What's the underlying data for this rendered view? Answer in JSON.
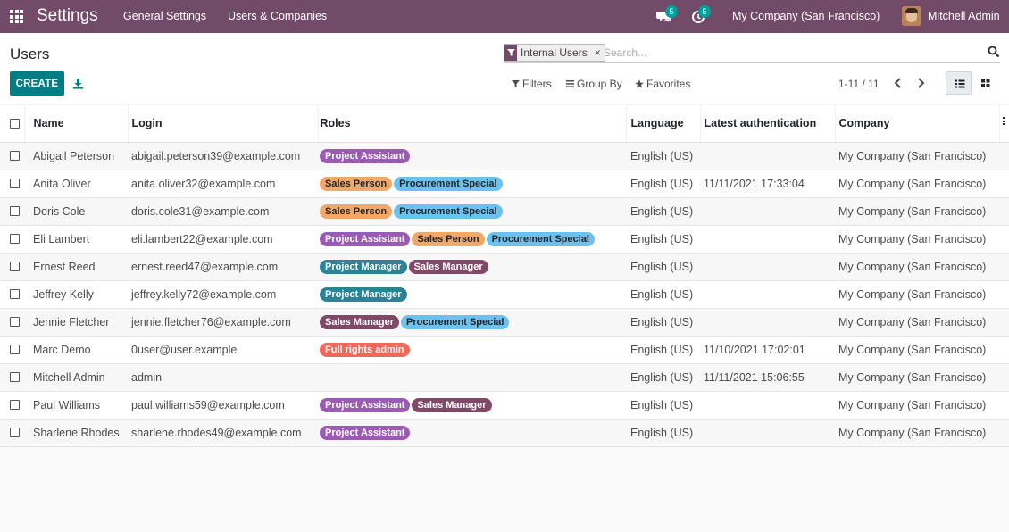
{
  "navbar": {
    "app_title": "Settings",
    "menu": [
      "General Settings",
      "Users & Companies"
    ],
    "chat_badge": "5",
    "activity_badge": "5",
    "company": "My Company (San Francisco)",
    "user": "Mitchell Admin",
    "bg_color": "#714B67"
  },
  "control": {
    "title": "Users",
    "create_label": "CREATE",
    "facet_label": "Internal Users",
    "facet_close": "×",
    "search_placeholder": "Search...",
    "filters_label": "Filters",
    "groupby_label": "Group By",
    "favorites_label": "Favorites",
    "pager": "1-11 / 11",
    "accent_color": "#017e84"
  },
  "table": {
    "columns": [
      "Name",
      "Login",
      "Roles",
      "Language",
      "Latest authentication",
      "Company"
    ],
    "rows": [
      {
        "name": "Abigail Peterson",
        "login": "abigail.peterson39@example.com",
        "roles": [
          "Project Assistant"
        ],
        "language": "English (US)",
        "auth": "",
        "company": "My Company (San Francisco)"
      },
      {
        "name": "Anita Oliver",
        "login": "anita.oliver32@example.com",
        "roles": [
          "Sales Person",
          "Procurement Special"
        ],
        "language": "English (US)",
        "auth": "11/11/2021 17:33:04",
        "company": "My Company (San Francisco)"
      },
      {
        "name": "Doris Cole",
        "login": "doris.cole31@example.com",
        "roles": [
          "Sales Person",
          "Procurement Special"
        ],
        "language": "English (US)",
        "auth": "",
        "company": "My Company (San Francisco)"
      },
      {
        "name": "Eli Lambert",
        "login": "eli.lambert22@example.com",
        "roles": [
          "Project Assistant",
          "Sales Person",
          "Procurement Special"
        ],
        "language": "English (US)",
        "auth": "",
        "company": "My Company (San Francisco)"
      },
      {
        "name": "Ernest Reed",
        "login": "ernest.reed47@example.com",
        "roles": [
          "Project Manager",
          "Sales Manager"
        ],
        "language": "English (US)",
        "auth": "",
        "company": "My Company (San Francisco)"
      },
      {
        "name": "Jeffrey Kelly",
        "login": "jeffrey.kelly72@example.com",
        "roles": [
          "Project Manager"
        ],
        "language": "English (US)",
        "auth": "",
        "company": "My Company (San Francisco)"
      },
      {
        "name": "Jennie Fletcher",
        "login": "jennie.fletcher76@example.com",
        "roles": [
          "Sales Manager",
          "Procurement Special"
        ],
        "language": "English (US)",
        "auth": "",
        "company": "My Company (San Francisco)"
      },
      {
        "name": "Marc Demo",
        "login": "0user@user.example",
        "roles": [
          "Full rights admin"
        ],
        "language": "English (US)",
        "auth": "11/10/2021 17:02:01",
        "company": "My Company (San Francisco)"
      },
      {
        "name": "Mitchell Admin",
        "login": "admin",
        "roles": [],
        "language": "English (US)",
        "auth": "11/11/2021 15:06:55",
        "company": "My Company (San Francisco)"
      },
      {
        "name": "Paul Williams",
        "login": "paul.williams59@example.com",
        "roles": [
          "Project Assistant",
          "Sales Manager"
        ],
        "language": "English (US)",
        "auth": "",
        "company": "My Company (San Francisco)"
      },
      {
        "name": "Sharlene Rhodes",
        "login": "sharlene.rhodes49@example.com",
        "roles": [
          "Project Assistant"
        ],
        "language": "English (US)",
        "auth": "",
        "company": "My Company (San Francisco)"
      }
    ]
  },
  "role_colors": {
    "Project Assistant": {
      "bg": "#9b5bb4",
      "fg": "#ffffff"
    },
    "Sales Person": {
      "bg": "#f0a868",
      "fg": "#212529"
    },
    "Procurement Special": {
      "bg": "#6cc1ed",
      "fg": "#212529"
    },
    "Project Manager": {
      "bg": "#2c8397",
      "fg": "#ffffff"
    },
    "Sales Manager": {
      "bg": "#814968",
      "fg": "#ffffff"
    },
    "Full rights admin": {
      "bg": "#ed6a5a",
      "fg": "#ffffff"
    }
  }
}
